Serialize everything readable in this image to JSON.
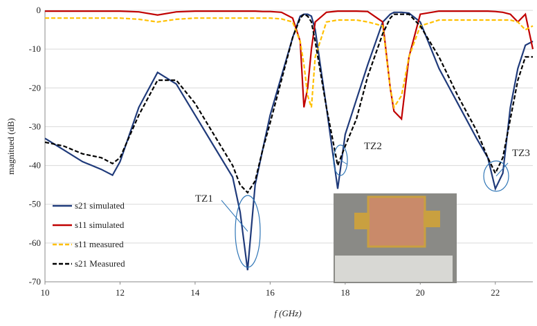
{
  "chart_data": {
    "type": "line",
    "xlabel": "f (GHz)",
    "ylabel": "magnitued (dB)",
    "xlim": [
      10,
      23
    ],
    "ylim": [
      -70,
      0
    ],
    "xticks": [
      10,
      12,
      14,
      16,
      18,
      20,
      22
    ],
    "yticks": [
      0,
      -10,
      -20,
      -30,
      -40,
      -50,
      -60,
      -70
    ],
    "grid": true,
    "x": [
      10,
      10.5,
      11,
      11.5,
      11.8,
      12,
      12.5,
      13,
      13.5,
      14,
      14.5,
      15,
      15.2,
      15.4,
      15.6,
      15.8,
      16,
      16.3,
      16.6,
      16.8,
      16.9,
      17,
      17.1,
      17.2,
      17.5,
      17.8,
      18,
      18.3,
      18.6,
      19,
      19.2,
      19.3,
      19.5,
      19.7,
      20,
      20.5,
      21,
      21.5,
      21.8,
      22,
      22.2,
      22.4,
      22.6,
      22.8,
      23
    ],
    "series": [
      {
        "name": "s21 simulated",
        "color": "#1f3a7a",
        "dash": "solid",
        "values": [
          -33,
          -36,
          -39,
          -41,
          -42.5,
          -39,
          -25,
          -16,
          -19,
          -27,
          -35,
          -43,
          -52,
          -67,
          -45,
          -36,
          -27,
          -17,
          -7,
          -1.5,
          -1,
          -1,
          -1.5,
          -5,
          -25,
          -46,
          -32,
          -23,
          -14,
          -3,
          -1,
          -0.5,
          -0.5,
          -0.7,
          -3,
          -15,
          -24,
          -33,
          -38,
          -46,
          -42,
          -25,
          -15,
          -9,
          -8
        ]
      },
      {
        "name": "s11 simulated",
        "color": "#c00000",
        "dash": "solid",
        "values": [
          -0.2,
          -0.2,
          -0.2,
          -0.2,
          -0.2,
          -0.2,
          -0.4,
          -1.2,
          -0.4,
          -0.2,
          -0.2,
          -0.2,
          -0.2,
          -0.2,
          -0.2,
          -0.3,
          -0.3,
          -0.5,
          -2,
          -8,
          -25,
          -20,
          -10,
          -3,
          -0.5,
          -0.2,
          -0.2,
          -0.2,
          -0.3,
          -3,
          -20,
          -26,
          -28,
          -12,
          -1,
          -0.2,
          -0.2,
          -0.2,
          -0.2,
          -0.3,
          -0.5,
          -1,
          -3,
          -1,
          -10
        ]
      },
      {
        "name": "s11 measured",
        "color": "#ffc000",
        "dash": "dashed",
        "values": [
          -2,
          -2,
          -2,
          -2,
          -2,
          -2,
          -2.3,
          -3,
          -2.3,
          -2,
          -2,
          -2,
          -2,
          -2,
          -2,
          -2,
          -2,
          -2.2,
          -3,
          -8,
          -14,
          -22,
          -25,
          -12,
          -3,
          -2.5,
          -2.5,
          -2.5,
          -3,
          -4,
          -20,
          -25,
          -22,
          -12,
          -4,
          -2.5,
          -2.5,
          -2.5,
          -2.5,
          -2.5,
          -2.5,
          -2.5,
          -3,
          -5,
          -4
        ]
      },
      {
        "name": "s21 Measured",
        "color": "#000000",
        "dash": "dashed",
        "values": [
          -34,
          -35,
          -37,
          -38,
          -39.5,
          -38,
          -27,
          -18,
          -18,
          -24,
          -32,
          -40,
          -45,
          -47,
          -44,
          -36,
          -29,
          -18,
          -7,
          -2,
          -1,
          -1.5,
          -3,
          -8,
          -25,
          -40,
          -35,
          -28,
          -17,
          -6,
          -2,
          -1,
          -1,
          -1,
          -4,
          -12,
          -22,
          -31,
          -38,
          -42,
          -38,
          -28,
          -18,
          -12,
          -12
        ]
      }
    ],
    "annotations": [
      "TZ1",
      "TZ2",
      "TZ3"
    ]
  }
}
